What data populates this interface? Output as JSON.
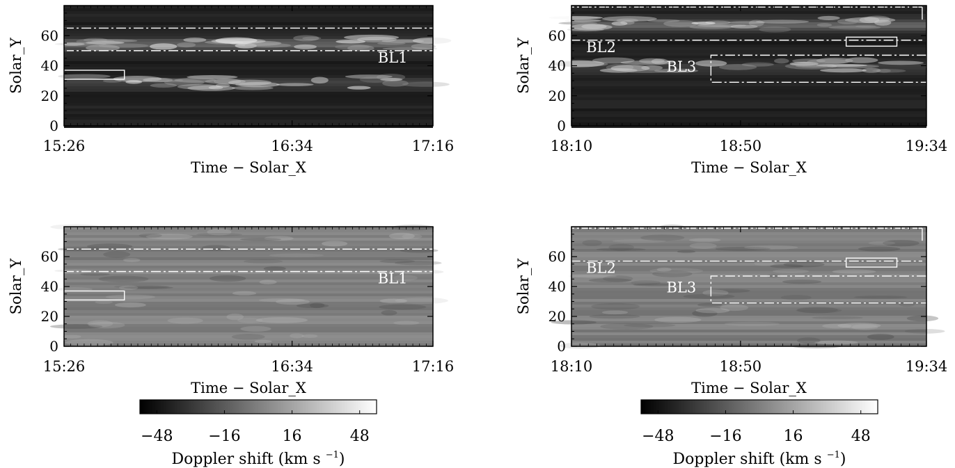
{
  "chart_data": [
    {
      "type": "heatmap",
      "variant": "intensity",
      "xlabel": "Time − Solar_X",
      "ylabel": "Solar_Y",
      "ylim": [
        0,
        80
      ],
      "yticks": [
        0,
        20,
        40,
        60
      ],
      "xticks": [
        "15:26",
        "16:34",
        "17:16"
      ],
      "xrange_minutes": [
        926,
        1036
      ],
      "xtick_minutes": [
        926,
        994,
        1036
      ],
      "bright_bands_y": [
        55,
        29
      ],
      "annotations": [
        {
          "type": "dashdot-lines",
          "y": [
            65,
            50
          ]
        },
        {
          "type": "box",
          "x_minutes": [
            926,
            944
          ],
          "y": [
            31,
            37
          ]
        },
        {
          "type": "label",
          "text": "BL1",
          "x_minutes": 1024,
          "y": 42
        }
      ]
    },
    {
      "type": "heatmap",
      "variant": "intensity",
      "xlabel": "Time − Solar_X",
      "ylabel": "Solar_Y",
      "ylim": [
        0,
        80
      ],
      "yticks": [
        0,
        20,
        40,
        60
      ],
      "xticks": [
        "18:10",
        "18:50",
        "19:34"
      ],
      "xrange_minutes": [
        1090,
        1174
      ],
      "xtick_minutes": [
        1090,
        1130,
        1174
      ],
      "bright_bands_y": [
        68,
        40
      ],
      "annotations": [
        {
          "type": "label",
          "text": "BL2",
          "x_minutes": 1097,
          "y": 49
        },
        {
          "type": "label",
          "text": "BL3",
          "x_minutes": 1116,
          "y": 36
        },
        {
          "type": "dashdot-box-open-right",
          "x_minutes": [
            1090,
            1173
          ],
          "y": [
            57,
            79
          ]
        },
        {
          "type": "dashdot-box-open-right",
          "x_minutes": [
            1123,
            1174
          ],
          "y": [
            29,
            47
          ]
        },
        {
          "type": "box",
          "x_minutes": [
            1155,
            1167
          ],
          "y": [
            53,
            59
          ]
        }
      ]
    },
    {
      "type": "heatmap",
      "variant": "doppler",
      "xlabel": "Time − Solar_X",
      "ylabel": "Solar_Y",
      "ylim": [
        0,
        80
      ],
      "yticks": [
        0,
        20,
        40,
        60
      ],
      "xticks": [
        "15:26",
        "16:34",
        "17:16"
      ],
      "xrange_minutes": [
        926,
        1036
      ],
      "xtick_minutes": [
        926,
        994,
        1036
      ],
      "annotations": [
        {
          "type": "dashdot-lines",
          "y": [
            65,
            50
          ]
        },
        {
          "type": "box",
          "x_minutes": [
            926,
            944
          ],
          "y": [
            31,
            37
          ]
        },
        {
          "type": "label",
          "text": "BL1",
          "x_minutes": 1024,
          "y": 42
        }
      ],
      "colorbar": {
        "ticks": [
          -48,
          -16,
          16,
          48
        ],
        "tick_labels": [
          "−48",
          "−16",
          "16",
          "48"
        ],
        "range": [
          -56,
          56
        ],
        "label": "Doppler shift (km s",
        "label_sup": "−1",
        "label_end": ")"
      }
    },
    {
      "type": "heatmap",
      "variant": "doppler",
      "xlabel": "Time − Solar_X",
      "ylabel": "Solar_Y",
      "ylim": [
        0,
        80
      ],
      "yticks": [
        0,
        20,
        40,
        60
      ],
      "xticks": [
        "18:10",
        "18:50",
        "19:34"
      ],
      "xrange_minutes": [
        1090,
        1174
      ],
      "xtick_minutes": [
        1090,
        1130,
        1174
      ],
      "annotations": [
        {
          "type": "label",
          "text": "BL2",
          "x_minutes": 1097,
          "y": 49
        },
        {
          "type": "label",
          "text": "BL3",
          "x_minutes": 1116,
          "y": 36
        },
        {
          "type": "dashdot-box-open-right",
          "x_minutes": [
            1090,
            1173
          ],
          "y": [
            57,
            79
          ]
        },
        {
          "type": "dashdot-box-open-right",
          "x_minutes": [
            1123,
            1174
          ],
          "y": [
            29,
            47
          ]
        },
        {
          "type": "box",
          "x_minutes": [
            1155,
            1167
          ],
          "y": [
            53,
            59
          ]
        }
      ],
      "colorbar": {
        "ticks": [
          -48,
          -16,
          16,
          48
        ],
        "tick_labels": [
          "−48",
          "−16",
          "16",
          "48"
        ],
        "range": [
          -56,
          56
        ],
        "label": "Doppler shift (km s",
        "label_sup": "−1",
        "label_end": ")"
      }
    }
  ]
}
